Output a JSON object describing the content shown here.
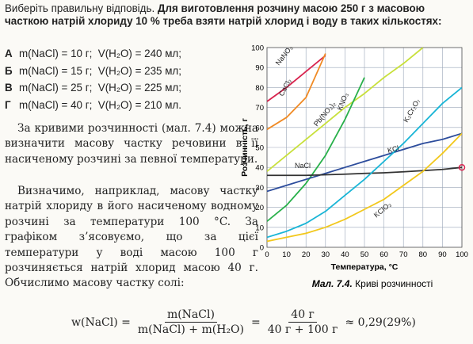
{
  "question": {
    "intro": "Виберіть правильну відповідь.",
    "text": "Для виготовлення розчину масою 250 г з масовою часткою натрій хлориду 10 % треба взяти натрій хлорид і воду в таких кількостях:",
    "options": [
      {
        "letter": "А",
        "text": "m(NaCl) = 10 г;  V(H₂O) = 240 мл;"
      },
      {
        "letter": "Б",
        "text": "m(NaCl) = 15 г;  V(H₂O) = 235 мл;"
      },
      {
        "letter": "В",
        "text": "m(NaCl) = 25 г;  V(H₂O) = 225 мл;"
      },
      {
        "letter": "Г",
        "text": "m(NaCl) = 40 г;  V(H₂O) = 210 мл."
      }
    ]
  },
  "paragraphs": [
    "За кривими розчинності (мал. 7.4) можна визначити масову частку речовини в її насиченому розчині за певної температури.",
    "Визначимо, наприклад, масову частку натрій хлориду в його насиченому водному розчині за температури 100 °C. За графіком з’ясовуємо, що за цієї температури у воді масою 100 г розчиняється натрій хлорид масою 40 г. Обчислимо масову частку солі:"
  ],
  "formula": {
    "lhs": "w(NaCl) =",
    "num1": "m(NaCl)",
    "den1": "m(NaCl) + m(H₂O)",
    "eq": "=",
    "num2": "40 г",
    "den2": "40 г + 100 г",
    "result": "≈ 0,29(29%)"
  },
  "chart_data": {
    "type": "line",
    "caption_label": "Мал. 7.4.",
    "caption": "Криві розчинності",
    "xlabel": "Температура, °C",
    "ylabel": "Розчинність, г",
    "x": [
      0,
      10,
      20,
      30,
      40,
      50,
      60,
      70,
      80,
      90,
      100
    ],
    "xlim": [
      0,
      100
    ],
    "ylim": [
      0,
      100
    ],
    "xticks": [
      0,
      10,
      20,
      30,
      40,
      50,
      60,
      70,
      80,
      90,
      100
    ],
    "yticks": [
      0,
      10,
      20,
      30,
      40,
      50,
      60,
      70,
      80,
      90,
      100
    ],
    "grid": true,
    "series": [
      {
        "name": "NaNO₃",
        "color": "#d8234e",
        "values": [
          73,
          80,
          88,
          96,
          null,
          null,
          null,
          null,
          null,
          null,
          null
        ]
      },
      {
        "name": "CaCl₂",
        "color": "#f08a24",
        "values": [
          59,
          65,
          75,
          97,
          null,
          null,
          null,
          null,
          null,
          null,
          null
        ]
      },
      {
        "name": "Pb(NO₃)₂",
        "color": "#c8e03a",
        "values": [
          38,
          46,
          54,
          62,
          70,
          77,
          85,
          92,
          100,
          null,
          null
        ]
      },
      {
        "name": "KNO₃",
        "color": "#28b04a",
        "values": [
          13,
          21,
          32,
          46,
          64,
          85,
          null,
          null,
          null,
          null,
          null
        ]
      },
      {
        "name": "KCl",
        "color": "#2c4c9c",
        "values": [
          28,
          31,
          34,
          37,
          40,
          43,
          46,
          49,
          52,
          54,
          57
        ]
      },
      {
        "name": "NaCl",
        "color": "#333333",
        "values": [
          36,
          36,
          36,
          36.3,
          36.6,
          37,
          37.3,
          37.8,
          38.4,
          39,
          40
        ]
      },
      {
        "name": "K₂Cr₂O₇",
        "color": "#19b5d6",
        "values": [
          5,
          8,
          12,
          18,
          26,
          34,
          43,
          52,
          62,
          72,
          80
        ]
      },
      {
        "name": "KClO₃",
        "color": "#f2c81c",
        "values": [
          3,
          5,
          7,
          10,
          14,
          19,
          24,
          31,
          38,
          47,
          57
        ]
      }
    ]
  }
}
